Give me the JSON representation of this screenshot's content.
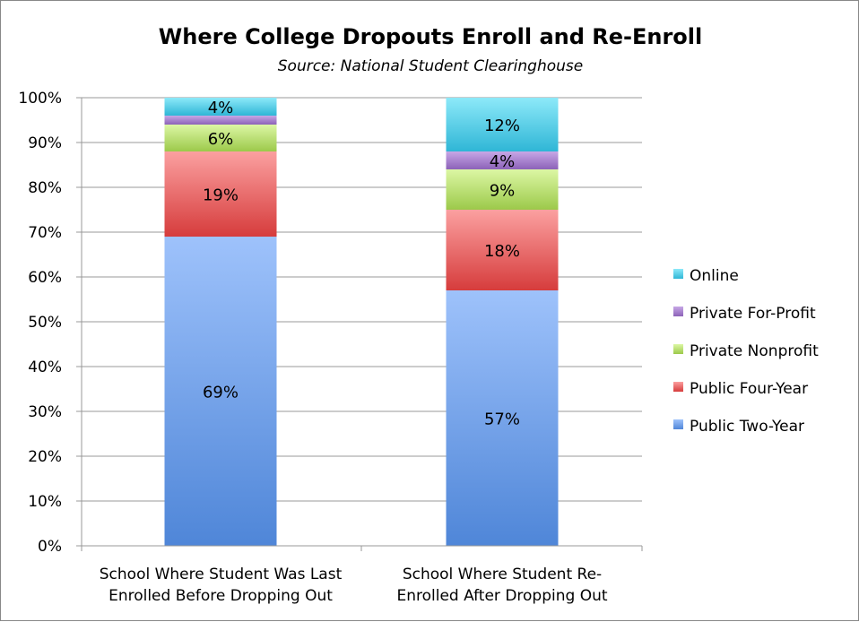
{
  "chart_data": {
    "type": "bar",
    "stacked": true,
    "title": "Where College Dropouts Enroll and Re-Enroll",
    "subtitle": "Source: National Student Clearinghouse",
    "categories": [
      "School Where Student Was Last Enrolled Before Dropping Out",
      "School Where Student Re-Enrolled After Dropping Out"
    ],
    "category_lines": [
      [
        "School Where Student Was Last",
        "Enrolled Before Dropping Out"
      ],
      [
        "School Where Student Re-",
        "Enrolled After Dropping Out"
      ]
    ],
    "series": [
      {
        "name": "Public Two-Year",
        "values": [
          69,
          57
        ],
        "labels": [
          "69%",
          "57%"
        ],
        "color": "#4f86d8",
        "color_light": "#9ec2fb"
      },
      {
        "name": "Public Four-Year",
        "values": [
          19,
          18
        ],
        "labels": [
          "19%",
          "18%"
        ],
        "color": "#d63c3c",
        "color_light": "#fba0a0"
      },
      {
        "name": "Private Nonprofit",
        "values": [
          6,
          9
        ],
        "labels": [
          "6%",
          "9%"
        ],
        "color": "#9cc94a",
        "color_light": "#dcf7a4"
      },
      {
        "name": "Private For-Profit",
        "values": [
          2,
          4
        ],
        "labels": [
          "",
          "4%"
        ],
        "color": "#8c62b8",
        "color_light": "#c7a7e6"
      },
      {
        "name": "Online",
        "values": [
          4,
          12
        ],
        "labels": [
          "4%",
          "12%"
        ],
        "color": "#2fb6d6",
        "color_light": "#8de9f9"
      }
    ],
    "ylim": [
      0,
      100
    ],
    "yticks": [
      "0%",
      "10%",
      "20%",
      "30%",
      "40%",
      "50%",
      "60%",
      "70%",
      "80%",
      "90%",
      "100%"
    ],
    "grid": true,
    "legend": "right"
  }
}
